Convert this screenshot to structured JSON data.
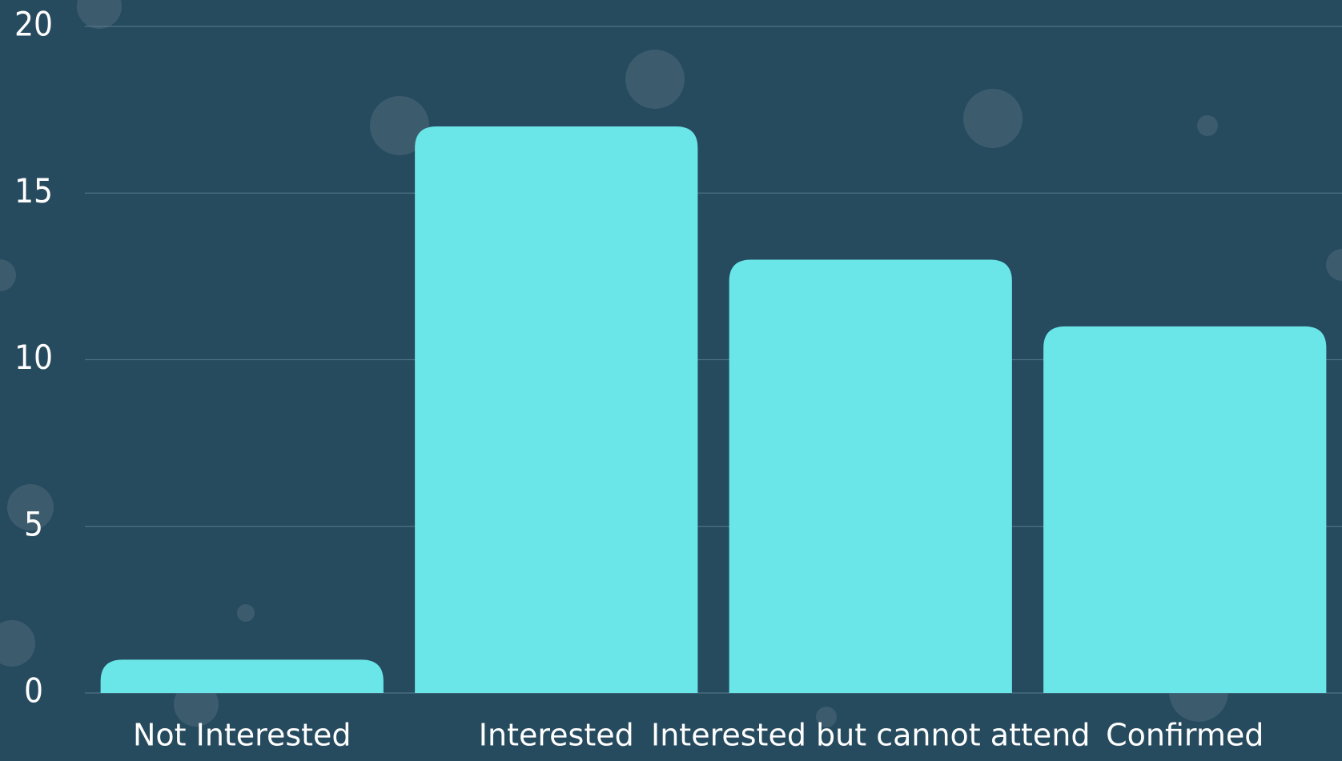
{
  "chart_data": {
    "type": "bar",
    "categories": [
      "Not Interested",
      "Interested",
      "Interested but cannot attend",
      "Confirmed"
    ],
    "values": [
      1,
      17,
      13,
      11
    ],
    "color": "#6ae6e8",
    "ylim": [
      0,
      20
    ],
    "yticks": [
      0,
      5,
      10,
      15,
      20
    ],
    "grid": true
  }
}
